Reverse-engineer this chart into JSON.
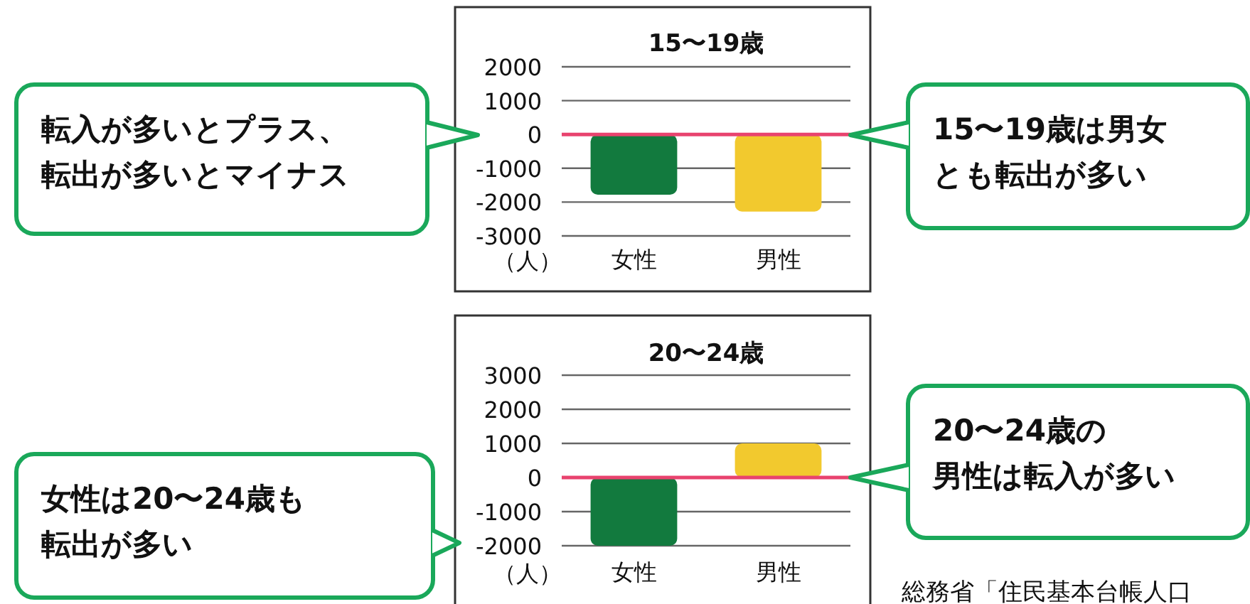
{
  "chart_data": [
    {
      "type": "bar",
      "title": "15〜19歳",
      "ylabel": "（人）",
      "categories": [
        "女性",
        "男性"
      ],
      "values": [
        -1780,
        -2280
      ],
      "colors": [
        "#127a3e",
        "#f2c92e"
      ],
      "ylim": [
        -3000,
        2000
      ],
      "yticks": [
        -3000,
        -2000,
        -1000,
        0,
        1000,
        2000
      ],
      "grid": "y",
      "ref_lines": [
        {
          "axis": "y",
          "value": 0,
          "color": "#e8436e"
        }
      ],
      "annotations": [
        "転入が多いとプラス、転出が多いとマイナス",
        "15〜19歳は男女とも転出が多い"
      ]
    },
    {
      "type": "bar",
      "title": "20〜24歳",
      "ylabel": "（人）",
      "categories": [
        "女性",
        "男性"
      ],
      "values": [
        -2000,
        1000
      ],
      "colors": [
        "#127a3e",
        "#f2c92e"
      ],
      "ylim": [
        -2000,
        3000
      ],
      "yticks": [
        -2000,
        -1000,
        0,
        1000,
        2000,
        3000
      ],
      "grid": "y",
      "ref_lines": [
        {
          "axis": "y",
          "value": 0,
          "color": "#e8436e"
        }
      ],
      "annotations": [
        "女性は20〜24歳も転出が多い",
        "20〜24歳の男性は転入が多い",
        "総務省「住民基本台帳人口"
      ]
    }
  ]
}
